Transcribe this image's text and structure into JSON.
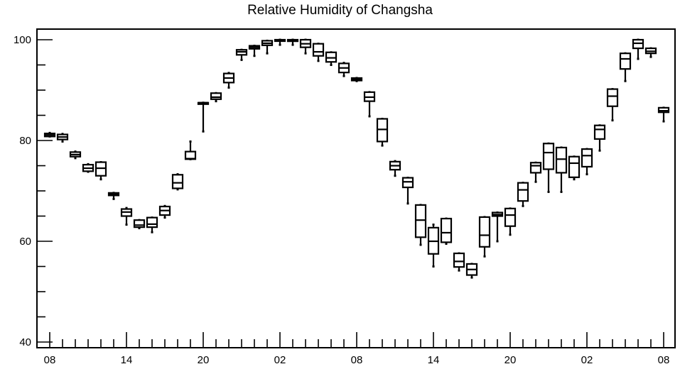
{
  "chart_data": {
    "type": "box",
    "title": "Relative Humidity of Changsha",
    "xlabel": "",
    "ylabel": "",
    "ylim": [
      40,
      102
    ],
    "y_ticks": [
      "40",
      "60",
      "80",
      "100"
    ],
    "x_ticks": [
      "08",
      "14",
      "20",
      "02",
      "08",
      "14",
      "20",
      "02",
      "08"
    ],
    "legend": "none",
    "grid": false,
    "boxes": [
      {
        "x": 0,
        "min": 80.8,
        "q1": 80.8,
        "median": 81.1,
        "q3": 81.4,
        "max": 81.5
      },
      {
        "x": 1,
        "min": 79.8,
        "q1": 80.2,
        "median": 80.7,
        "q3": 81.2,
        "max": 81.3
      },
      {
        "x": 2,
        "min": 76.5,
        "q1": 76.8,
        "median": 77.2,
        "q3": 77.7,
        "max": 77.8
      },
      {
        "x": 3,
        "min": 73.8,
        "q1": 73.9,
        "median": 74.5,
        "q3": 75.2,
        "max": 75.3
      },
      {
        "x": 4,
        "min": 72.3,
        "q1": 73.0,
        "median": 74.5,
        "q3": 75.7,
        "max": 75.7
      },
      {
        "x": 5,
        "min": 68.4,
        "q1": 69.1,
        "median": 69.3,
        "q3": 69.6,
        "max": 69.6
      },
      {
        "x": 6,
        "min": 63.3,
        "q1": 65.0,
        "median": 65.8,
        "q3": 66.4,
        "max": 66.6
      },
      {
        "x": 7,
        "min": 62.6,
        "q1": 62.8,
        "median": 63.2,
        "q3": 64.2,
        "max": 64.2
      },
      {
        "x": 8,
        "min": 61.8,
        "q1": 62.8,
        "median": 63.4,
        "q3": 64.7,
        "max": 64.7
      },
      {
        "x": 9,
        "min": 64.7,
        "q1": 65.2,
        "median": 66.1,
        "q3": 66.9,
        "max": 67.0
      },
      {
        "x": 10,
        "min": 70.3,
        "q1": 70.5,
        "median": 71.6,
        "q3": 73.2,
        "max": 73.3
      },
      {
        "x": 11,
        "min": 76.3,
        "q1": 76.3,
        "median": 76.4,
        "q3": 77.8,
        "max": 79.8
      },
      {
        "x": 12,
        "min": 81.8,
        "q1": 87.5,
        "median": 87.5,
        "q3": 87.5,
        "max": 87.5
      },
      {
        "x": 13,
        "min": 87.8,
        "q1": 88.2,
        "median": 88.6,
        "q3": 89.4,
        "max": 89.4
      },
      {
        "x": 14,
        "min": 90.5,
        "q1": 91.5,
        "median": 92.4,
        "q3": 93.3,
        "max": 93.4
      },
      {
        "x": 15,
        "min": 96.0,
        "q1": 97.0,
        "median": 97.6,
        "q3": 98.0,
        "max": 98.0
      },
      {
        "x": 16,
        "min": 96.8,
        "q1": 98.2,
        "median": 98.5,
        "q3": 98.8,
        "max": 98.8
      },
      {
        "x": 17,
        "min": 97.3,
        "q1": 98.9,
        "median": 99.3,
        "q3": 99.8,
        "max": 99.8
      },
      {
        "x": 18,
        "min": 99.0,
        "q1": 99.8,
        "median": 99.9,
        "q3": 100.0,
        "max": 100.0
      },
      {
        "x": 19,
        "min": 99.0,
        "q1": 99.7,
        "median": 99.9,
        "q3": 100.0,
        "max": 100.0
      },
      {
        "x": 20,
        "min": 97.3,
        "q1": 98.5,
        "median": 99.2,
        "q3": 100.0,
        "max": 100.0
      },
      {
        "x": 21,
        "min": 95.8,
        "q1": 96.8,
        "median": 97.6,
        "q3": 99.2,
        "max": 99.2
      },
      {
        "x": 22,
        "min": 95.0,
        "q1": 95.6,
        "median": 96.4,
        "q3": 97.5,
        "max": 97.5
      },
      {
        "x": 23,
        "min": 92.8,
        "q1": 93.5,
        "median": 94.4,
        "q3": 95.3,
        "max": 95.4
      },
      {
        "x": 24,
        "min": 91.8,
        "q1": 91.9,
        "median": 92.1,
        "q3": 92.4,
        "max": 92.4
      },
      {
        "x": 25,
        "min": 84.8,
        "q1": 87.8,
        "median": 88.6,
        "q3": 89.6,
        "max": 89.6
      },
      {
        "x": 26,
        "min": 79.0,
        "q1": 79.8,
        "median": 82.2,
        "q3": 84.3,
        "max": 84.3
      },
      {
        "x": 27,
        "min": 73.0,
        "q1": 74.2,
        "median": 75.0,
        "q3": 75.8,
        "max": 75.9
      },
      {
        "x": 28,
        "min": 67.5,
        "q1": 70.7,
        "median": 71.8,
        "q3": 72.6,
        "max": 72.6
      },
      {
        "x": 29,
        "min": 59.3,
        "q1": 60.8,
        "median": 64.2,
        "q3": 67.2,
        "max": 67.2
      },
      {
        "x": 30,
        "min": 55.0,
        "q1": 57.5,
        "median": 60.0,
        "q3": 62.7,
        "max": 63.3
      },
      {
        "x": 31,
        "min": 59.5,
        "q1": 59.8,
        "median": 61.7,
        "q3": 64.5,
        "max": 64.5
      },
      {
        "x": 32,
        "min": 54.2,
        "q1": 54.9,
        "median": 56.0,
        "q3": 57.6,
        "max": 57.6
      },
      {
        "x": 33,
        "min": 52.8,
        "q1": 53.3,
        "median": 54.4,
        "q3": 55.5,
        "max": 55.5
      },
      {
        "x": 34,
        "min": 57.0,
        "q1": 58.9,
        "median": 61.2,
        "q3": 64.8,
        "max": 64.8
      },
      {
        "x": 35,
        "min": 60.0,
        "q1": 65.0,
        "median": 65.3,
        "q3": 65.7,
        "max": 65.7
      },
      {
        "x": 36,
        "min": 61.3,
        "q1": 63.0,
        "median": 65.2,
        "q3": 66.5,
        "max": 66.5
      },
      {
        "x": 37,
        "min": 67.0,
        "q1": 68.0,
        "median": 70.2,
        "q3": 71.6,
        "max": 71.6
      },
      {
        "x": 38,
        "min": 71.8,
        "q1": 73.6,
        "median": 75.0,
        "q3": 75.6,
        "max": 75.6
      },
      {
        "x": 39,
        "min": 69.8,
        "q1": 74.3,
        "median": 77.6,
        "q3": 79.4,
        "max": 79.4
      },
      {
        "x": 40,
        "min": 69.8,
        "q1": 73.6,
        "median": 76.3,
        "q3": 78.6,
        "max": 78.6
      },
      {
        "x": 41,
        "min": 72.3,
        "q1": 72.7,
        "median": 75.5,
        "q3": 76.8,
        "max": 76.8
      },
      {
        "x": 42,
        "min": 73.3,
        "q1": 74.8,
        "median": 77.0,
        "q3": 78.3,
        "max": 78.3
      },
      {
        "x": 43,
        "min": 78.0,
        "q1": 80.3,
        "median": 82.2,
        "q3": 83.0,
        "max": 83.0
      },
      {
        "x": 44,
        "min": 84.0,
        "q1": 86.8,
        "median": 88.8,
        "q3": 90.2,
        "max": 90.2
      },
      {
        "x": 45,
        "min": 91.8,
        "q1": 94.2,
        "median": 96.2,
        "q3": 97.3,
        "max": 97.3
      },
      {
        "x": 46,
        "min": 96.2,
        "q1": 98.3,
        "median": 99.3,
        "q3": 100.0,
        "max": 100.0
      },
      {
        "x": 47,
        "min": 96.6,
        "q1": 97.3,
        "median": 97.7,
        "q3": 98.3,
        "max": 98.3
      },
      {
        "x": 48,
        "min": 83.8,
        "q1": 85.6,
        "median": 85.9,
        "q3": 86.5,
        "max": 86.5
      }
    ]
  }
}
